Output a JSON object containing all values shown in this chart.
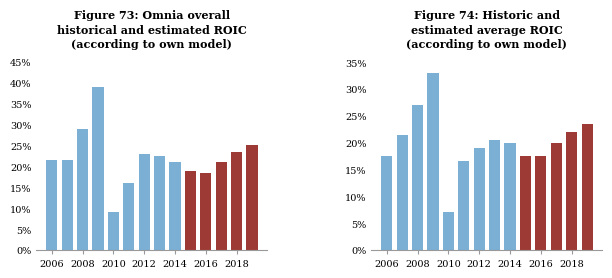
{
  "fig73": {
    "title": "Figure 73: Omnia overall\nhistorical and estimated ROIC\n(according to own model)",
    "blue_years": [
      2006,
      2007,
      2008,
      2009,
      2010,
      2011,
      2012,
      2013,
      2014
    ],
    "blue_values": [
      0.215,
      0.215,
      0.29,
      0.39,
      0.09,
      0.16,
      0.23,
      0.225,
      0.21
    ],
    "red_years": [
      2015,
      2016,
      2017,
      2018,
      2019
    ],
    "red_values": [
      0.19,
      0.185,
      0.21,
      0.235,
      0.25
    ],
    "ylim": [
      0,
      0.475
    ],
    "yticks": [
      0,
      0.05,
      0.1,
      0.15,
      0.2,
      0.25,
      0.3,
      0.35,
      0.4,
      0.45
    ],
    "blue_color": "#7BAFD4",
    "red_color": "#9E3A35"
  },
  "fig74": {
    "title": "Figure 74: Historic and\nestimated average ROIC\n(according to own model)",
    "blue_years": [
      2006,
      2007,
      2008,
      2009,
      2010,
      2011,
      2012,
      2013,
      2014
    ],
    "blue_values": [
      0.175,
      0.215,
      0.27,
      0.33,
      0.07,
      0.165,
      0.19,
      0.205,
      0.2
    ],
    "red_years": [
      2015,
      2016,
      2017,
      2018,
      2019
    ],
    "red_values": [
      0.175,
      0.175,
      0.2,
      0.22,
      0.235
    ],
    "ylim": [
      0,
      0.37
    ],
    "yticks": [
      0,
      0.05,
      0.1,
      0.15,
      0.2,
      0.25,
      0.3,
      0.35
    ],
    "blue_color": "#7BAFD4",
    "red_color": "#9E3A35"
  },
  "background_color": "#FFFFFF",
  "bar_width": 0.72,
  "tick_fontsize": 7,
  "title_fontsize": 8,
  "xlabel_years": [
    2006,
    2008,
    2010,
    2012,
    2014,
    2016,
    2018
  ]
}
